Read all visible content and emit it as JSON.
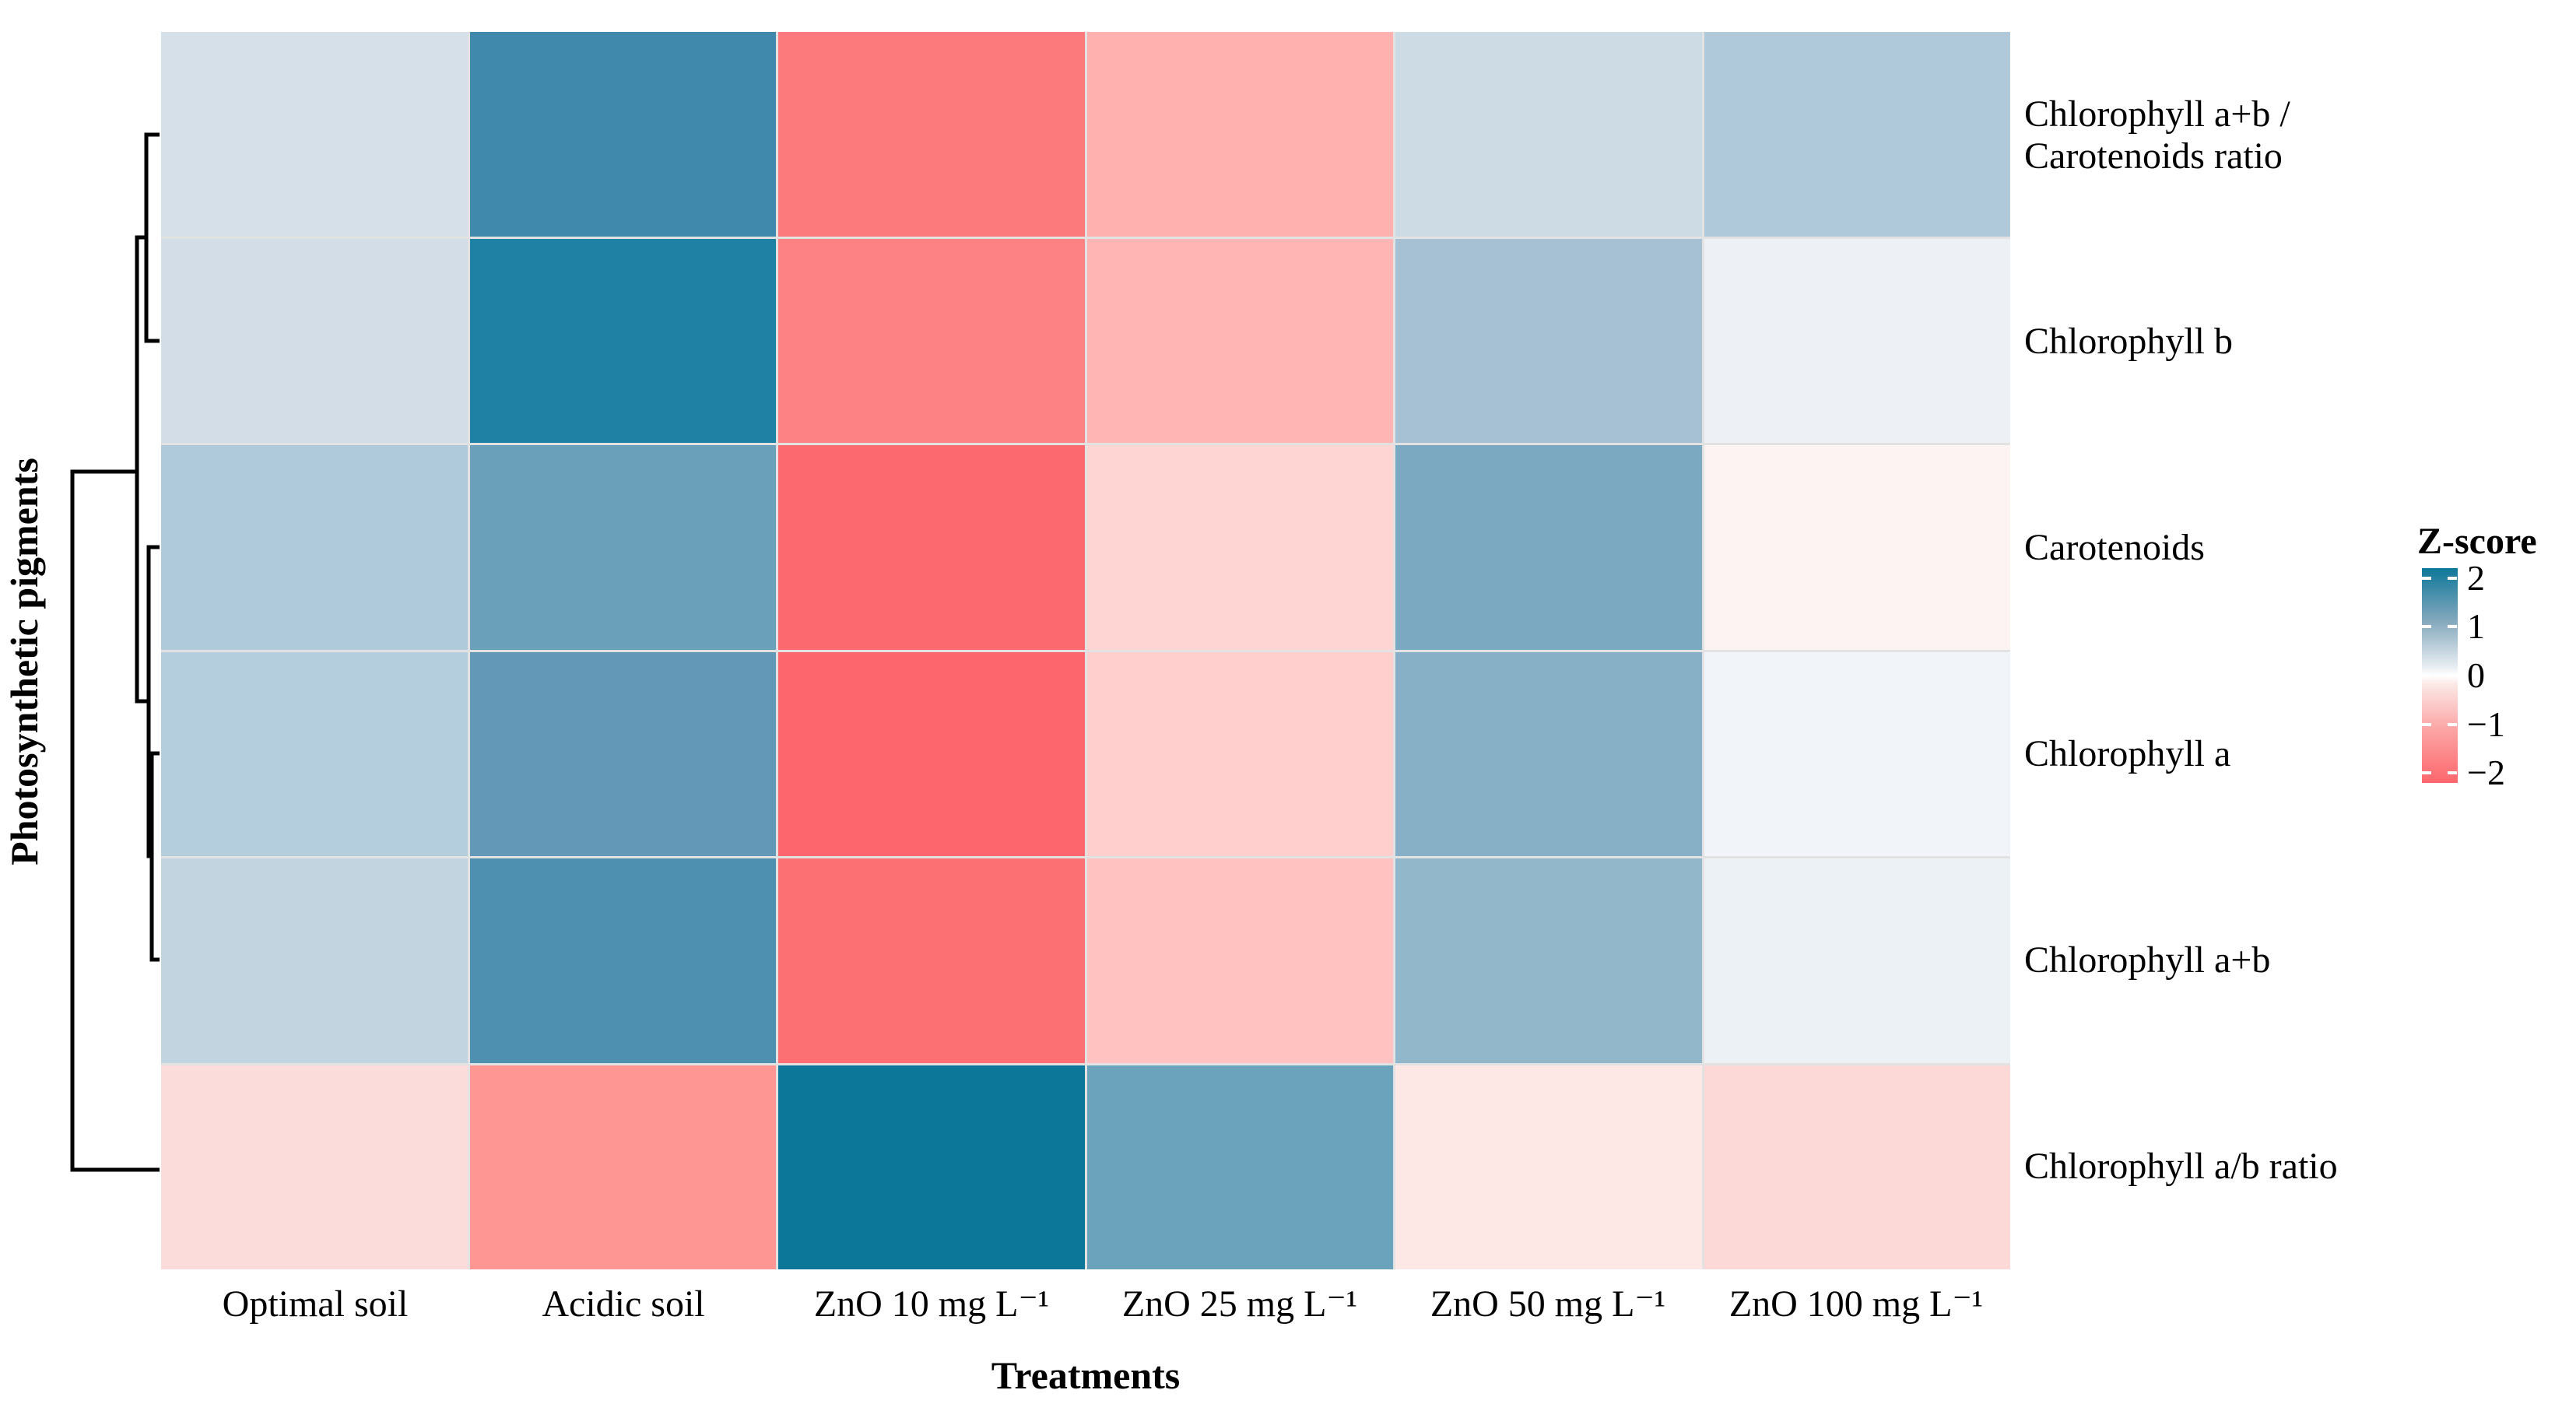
{
  "axes": {
    "x_title": "Treatments",
    "y_title": "Photosynthetic pigments"
  },
  "legend": {
    "title": "Z-score",
    "ticks": [
      {
        "label": "2",
        "value": 2
      },
      {
        "label": "1",
        "value": 1
      },
      {
        "label": "0",
        "value": 0
      },
      {
        "label": "−1",
        "value": -1
      },
      {
        "label": "−2",
        "value": -2
      }
    ],
    "value_range_top_to_bottom": [
      2.2,
      -2.2
    ],
    "colors": {
      "positive": "#0d7799",
      "zero": "#ffffff",
      "negative": "#fc666c"
    }
  },
  "chart_data": {
    "type": "heatmap",
    "title": "",
    "xlabel": "Treatments",
    "ylabel": "Photosynthetic pigments",
    "columns": [
      "Optimal soil",
      "Acidic soil",
      "ZnO 10 mg L⁻¹",
      "ZnO 25 mg L⁻¹",
      "ZnO 50 mg L⁻¹",
      "ZnO 100 mg L⁻¹"
    ],
    "rows": [
      "Chlorophyll a+b /\nCarotenoids ratio",
      "Chlorophyll b",
      "Carotenoids",
      "Chlorophyll a",
      "Chlorophyll a+b",
      "Chlorophyll a/b ratio"
    ],
    "z_scores": [
      [
        0.35,
        1.45,
        -1.5,
        -0.9,
        0.45,
        0.7
      ],
      [
        0.4,
        1.8,
        -1.4,
        -0.85,
        0.85,
        0.1
      ],
      [
        0.75,
        1.15,
        -1.7,
        -0.5,
        1.05,
        -0.1
      ],
      [
        0.7,
        1.2,
        -1.75,
        -0.55,
        0.95,
        0.05
      ],
      [
        0.55,
        1.35,
        -1.65,
        -0.7,
        0.9,
        0.1
      ],
      [
        -0.45,
        -1.2,
        2.0,
        1.1,
        -0.3,
        -0.45
      ]
    ],
    "cell_colors": [
      [
        "#d5e0e9",
        "#4189ac",
        "#fc7a7c",
        "#ffb1b0",
        "#cddbe5",
        "#afc9da"
      ],
      [
        "#d2dde7",
        "#1f81a4",
        "#fc8283",
        "#ffb5b3",
        "#a6c1d3",
        "#edf1f6"
      ],
      [
        "#aecadb",
        "#6ba0bb",
        "#fc6a6f",
        "#ffd5d4",
        "#7aa9c1",
        "#fdf3f2"
      ],
      [
        "#b5cedd",
        "#6399b7",
        "#fc666c",
        "#ffcfce",
        "#87b0c7",
        "#f1f4f8"
      ],
      [
        "#c2d4e0",
        "#4e90b0",
        "#fc6f73",
        "#ffc2c1",
        "#92b7cb",
        "#ecf1f5"
      ],
      [
        "#fcdcda",
        "#fe9693",
        "#0d7799",
        "#6ba3bd",
        "#fde8e6",
        "#fcd9d7"
      ]
    ],
    "row_clustering": "((Chlorophyll a+b/Carotenoids ratio, Chlorophyll b), (Carotenoids, (Chlorophyll a, Chlorophyll a+b))) joined last by Chlorophyll a/b ratio",
    "grid": "thin light gray gaps between cells",
    "legend_position": "right middle"
  }
}
